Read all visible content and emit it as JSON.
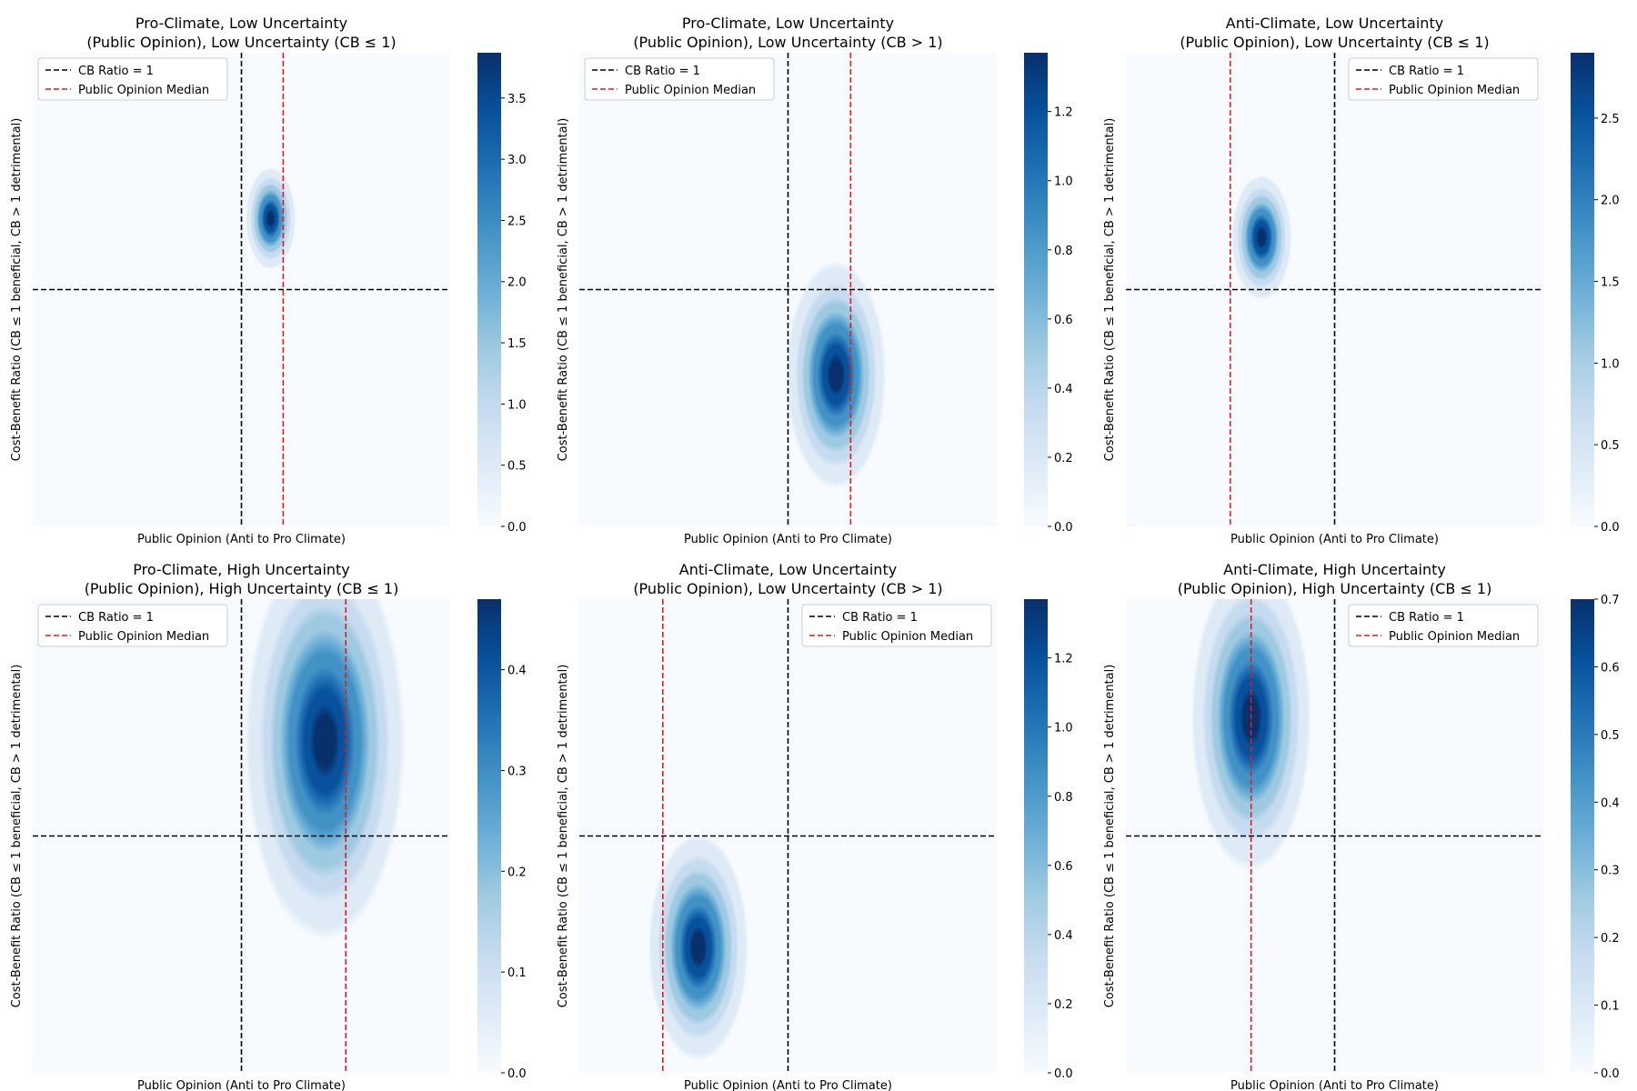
{
  "chart_data": [
    {
      "type": "heatmap",
      "title_line1": "Pro-Climate, Low Uncertainty",
      "title_line2": "(Public Opinion), Low Uncertainty (CB ≤ 1)",
      "xlabel": "Public Opinion (Anti to Pro Climate)",
      "ylabel": "Cost-Benefit Ratio (CB ≤ 1 beneficial, CB > 1 detrimental)",
      "xlim": [
        -1,
        1
      ],
      "ylim": [
        0,
        2
      ],
      "density": {
        "mean_x": 0.14,
        "mean_y": 1.3,
        "sd_x": 0.05,
        "sd_y": 0.09,
        "peak": 3.87
      },
      "cb_ratio_line": 1,
      "public_opinion_median": 0.2,
      "colorbar": {
        "min": 0,
        "max": 3.87,
        "ticks": [
          "0.0",
          "0.5",
          "1.0",
          "1.5",
          "2.0",
          "2.5",
          "3.0",
          "3.5"
        ],
        "tick_values": [
          0,
          0.5,
          1,
          1.5,
          2,
          2.5,
          3,
          3.5
        ]
      },
      "legend": {
        "position": "upper left",
        "entries": [
          "CB Ratio = 1",
          "Public Opinion Median"
        ]
      }
    },
    {
      "type": "heatmap",
      "title_line1": "Pro-Climate, Low Uncertainty",
      "title_line2": "(Public Opinion), Low Uncertainty (CB > 1)",
      "xlabel": "Public Opinion (Anti to Pro Climate)",
      "ylabel": "Cost-Benefit Ratio (CB ≤ 1 beneficial, CB > 1 detrimental)",
      "xlim": [
        -1,
        1
      ],
      "ylim": [
        0,
        2
      ],
      "density": {
        "mean_x": 0.23,
        "mean_y": 0.64,
        "sd_x": 0.1,
        "sd_y": 0.2,
        "peak": 1.37
      },
      "cb_ratio_line": 1,
      "public_opinion_median": 0.3,
      "colorbar": {
        "min": 0,
        "max": 1.37,
        "ticks": [
          "0.0",
          "0.2",
          "0.4",
          "0.6",
          "0.8",
          "1.0",
          "1.2"
        ],
        "tick_values": [
          0,
          0.2,
          0.4,
          0.6,
          0.8,
          1.0,
          1.2
        ]
      },
      "legend": {
        "position": "upper left",
        "entries": [
          "CB Ratio = 1",
          "Public Opinion Median"
        ]
      }
    },
    {
      "type": "heatmap",
      "title_line1": "Anti-Climate, Low Uncertainty",
      "title_line2": "(Public Opinion), Low Uncertainty (CB ≤ 1)",
      "xlabel": "Public Opinion (Anti to Pro Climate)",
      "ylabel": "Cost-Benefit Ratio (CB ≤ 1 beneficial, CB > 1 detrimental)",
      "xlim": [
        -1,
        1
      ],
      "ylim": [
        0,
        2
      ],
      "density": {
        "mean_x": -0.35,
        "mean_y": 1.22,
        "sd_x": 0.06,
        "sd_y": 0.11,
        "peak": 2.9
      },
      "cb_ratio_line": 1,
      "public_opinion_median": -0.5,
      "colorbar": {
        "min": 0,
        "max": 2.9,
        "ticks": [
          "0.0",
          "0.5",
          "1.0",
          "1.5",
          "2.0",
          "2.5"
        ],
        "tick_values": [
          0,
          0.5,
          1,
          1.5,
          2,
          2.5
        ]
      },
      "legend": {
        "position": "upper right",
        "entries": [
          "CB Ratio = 1",
          "Public Opinion Median"
        ]
      }
    },
    {
      "type": "heatmap",
      "title_line1": "Pro-Climate, High Uncertainty",
      "title_line2": "(Public Opinion), High Uncertainty (CB ≤ 1)",
      "xlabel": "Public Opinion (Anti to Pro Climate)",
      "ylabel": "Cost-Benefit Ratio (CB ≤ 1 beneficial, CB > 1 detrimental)",
      "xlim": [
        -1,
        1
      ],
      "ylim": [
        0,
        2
      ],
      "density": {
        "mean_x": 0.4,
        "mean_y": 1.4,
        "sd_x": 0.16,
        "sd_y": 0.35,
        "peak": 0.47
      },
      "cb_ratio_line": 1,
      "public_opinion_median": 0.5,
      "colorbar": {
        "min": 0,
        "max": 0.47,
        "ticks": [
          "0.0",
          "0.1",
          "0.2",
          "0.3",
          "0.4"
        ],
        "tick_values": [
          0,
          0.1,
          0.2,
          0.3,
          0.4
        ]
      },
      "legend": {
        "position": "upper left",
        "entries": [
          "CB Ratio = 1",
          "Public Opinion Median"
        ]
      }
    },
    {
      "type": "heatmap",
      "title_line1": "Anti-Climate, Low Uncertainty",
      "title_line2": "(Public Opinion), Low Uncertainty (CB > 1)",
      "xlabel": "Public Opinion (Anti to Pro Climate)",
      "ylabel": "Cost-Benefit Ratio (CB ≤ 1 beneficial, CB > 1 detrimental)",
      "xlim": [
        -1,
        1
      ],
      "ylim": [
        0,
        2
      ],
      "density": {
        "mean_x": -0.43,
        "mean_y": 0.53,
        "sd_x": 0.1,
        "sd_y": 0.2,
        "peak": 1.37
      },
      "cb_ratio_line": 1,
      "public_opinion_median": -0.6,
      "colorbar": {
        "min": 0,
        "max": 1.37,
        "ticks": [
          "0.0",
          "0.2",
          "0.4",
          "0.6",
          "0.8",
          "1.0",
          "1.2"
        ],
        "tick_values": [
          0,
          0.2,
          0.4,
          0.6,
          0.8,
          1.0,
          1.2
        ]
      },
      "legend": {
        "position": "upper right",
        "entries": [
          "CB Ratio = 1",
          "Public Opinion Median"
        ]
      }
    },
    {
      "type": "heatmap",
      "title_line1": "Anti-Climate, High Uncertainty",
      "title_line2": "(Public Opinion), High Uncertainty (CB ≤ 1)",
      "xlabel": "Public Opinion (Anti to Pro Climate)",
      "ylabel": "Cost-Benefit Ratio (CB ≤ 1 beneficial, CB > 1 detrimental)",
      "xlim": [
        -1,
        1
      ],
      "ylim": [
        0,
        2
      ],
      "density": {
        "mean_x": -0.4,
        "mean_y": 1.5,
        "sd_x": 0.12,
        "sd_y": 0.27,
        "peak": 0.7
      },
      "cb_ratio_line": 1,
      "public_opinion_median": -0.4,
      "colorbar": {
        "min": 0,
        "max": 0.7,
        "ticks": [
          "0.0",
          "0.1",
          "0.2",
          "0.3",
          "0.4",
          "0.5",
          "0.6",
          "0.7"
        ],
        "tick_values": [
          0,
          0.1,
          0.2,
          0.3,
          0.4,
          0.5,
          0.6,
          0.7
        ]
      },
      "legend": {
        "position": "upper right",
        "entries": [
          "CB Ratio = 1",
          "Public Opinion Median"
        ]
      }
    }
  ],
  "colors": {
    "colormap": [
      "#f7fbff",
      "#deebf7",
      "#c6dbef",
      "#9ecae1",
      "#6baed6",
      "#4292c6",
      "#2171b5",
      "#08519c",
      "#08306b"
    ],
    "cb_line": "#000000",
    "median_line": "#e41a1c"
  }
}
